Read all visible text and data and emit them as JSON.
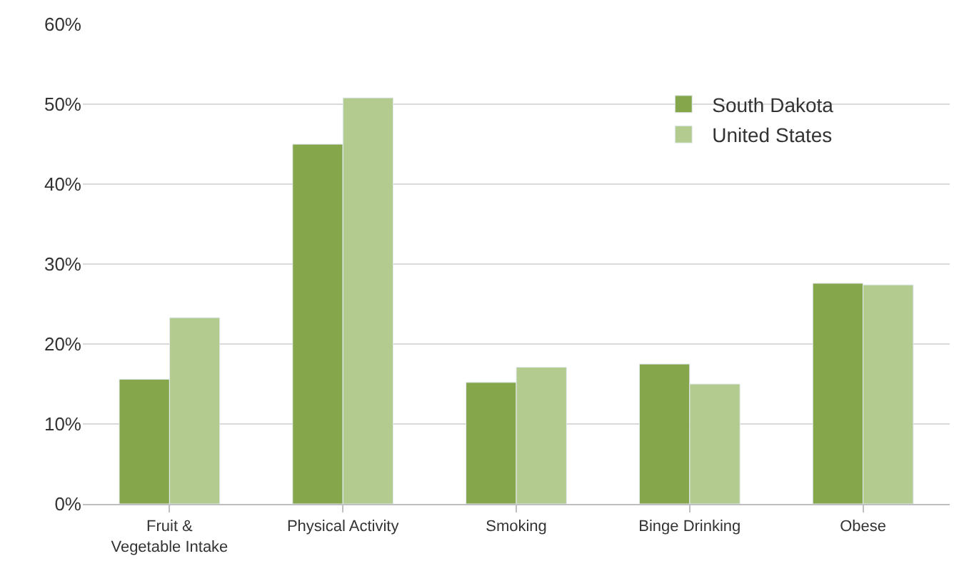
{
  "chart_data": {
    "type": "bar",
    "categories": [
      "Fruit & Vegetable Intake",
      "Physical Activity",
      "Smoking",
      "Binge Drinking",
      "Obese"
    ],
    "series": [
      {
        "name": "South Dakota",
        "color": "#86a64b",
        "values": [
          15.6,
          45,
          15.2,
          17.5,
          27.6
        ]
      },
      {
        "name": "United States",
        "color": "#b3cb8f",
        "values": [
          23.3,
          50.8,
          17.1,
          15,
          27.4
        ]
      }
    ],
    "ylim": [
      0,
      60
    ],
    "yticks": [
      {
        "value": 0,
        "label": "0%"
      },
      {
        "value": 10,
        "label": "10%"
      },
      {
        "value": 20,
        "label": "20%"
      },
      {
        "value": 30,
        "label": "30%"
      },
      {
        "value": 40,
        "label": "40%"
      },
      {
        "value": 50,
        "label": "50%"
      },
      {
        "value": 60,
        "label": "60%"
      }
    ],
    "grid": "y",
    "legend": "top right"
  }
}
